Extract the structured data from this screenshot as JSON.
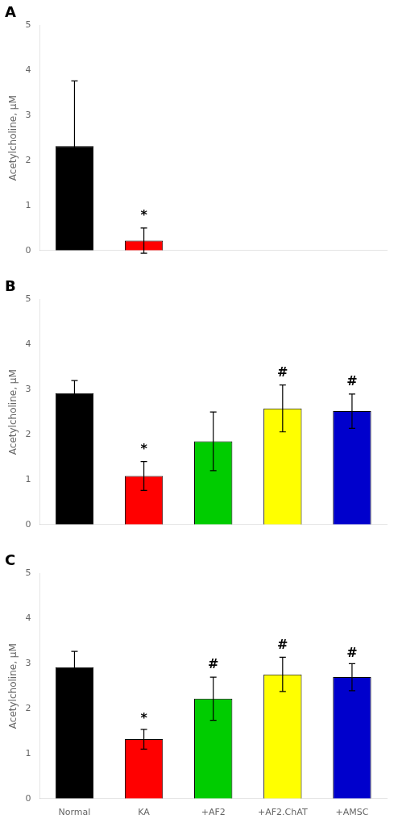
{
  "chart_data": [
    {
      "type": "bar",
      "title": "A",
      "categories": [
        null,
        null,
        null,
        null,
        null
      ],
      "values": [
        2.32,
        0.22,
        null,
        null,
        null
      ],
      "errors": [
        1.45,
        0.28,
        null,
        null,
        null
      ],
      "colors": [
        "#000000",
        "#ff0000",
        "#00cc00",
        "#ffff00",
        "#0000cc"
      ],
      "annotations": [
        null,
        "*",
        null,
        null,
        null
      ],
      "annotations_y": [
        null,
        0.62,
        null,
        null,
        null
      ],
      "ylabel": "Acetylcholine, μM",
      "ylim": [
        0,
        5
      ],
      "yticks": [
        0,
        1,
        2,
        3,
        4,
        5
      ],
      "grid": false
    },
    {
      "type": "bar",
      "title": "B",
      "categories": [
        null,
        null,
        null,
        null,
        null
      ],
      "values": [
        2.92,
        1.08,
        1.85,
        2.58,
        2.52
      ],
      "errors": [
        0.28,
        0.32,
        0.65,
        0.52,
        0.38
      ],
      "colors": [
        "#000000",
        "#ff0000",
        "#00cc00",
        "#ffff00",
        "#0000cc"
      ],
      "annotations": [
        null,
        "*",
        null,
        "#",
        "#"
      ],
      "annotations_y": [
        null,
        1.52,
        null,
        3.22,
        3.02
      ],
      "ylabel": "Acetylcholine, μM",
      "ylim": [
        0,
        5
      ],
      "yticks": [
        0,
        1,
        2,
        3,
        4,
        5
      ],
      "grid": false
    },
    {
      "type": "bar",
      "title": "C",
      "categories": [
        "Normal",
        "KA",
        "+AF2",
        "+AF2.ChAT",
        "+AMSC"
      ],
      "values": [
        2.92,
        1.32,
        2.22,
        2.76,
        2.7
      ],
      "errors": [
        0.35,
        0.22,
        0.48,
        0.38,
        0.3
      ],
      "colors": [
        "#000000",
        "#ff0000",
        "#00cc00",
        "#ffff00",
        "#0000cc"
      ],
      "annotations": [
        null,
        "*",
        "#",
        "#",
        "#"
      ],
      "annotations_y": [
        null,
        1.62,
        2.82,
        3.26,
        3.08
      ],
      "ylabel": "Acetylcholine, μM",
      "ylim": [
        0,
        5
      ],
      "yticks": [
        0,
        1,
        2,
        3,
        4,
        5
      ],
      "grid": false
    }
  ]
}
